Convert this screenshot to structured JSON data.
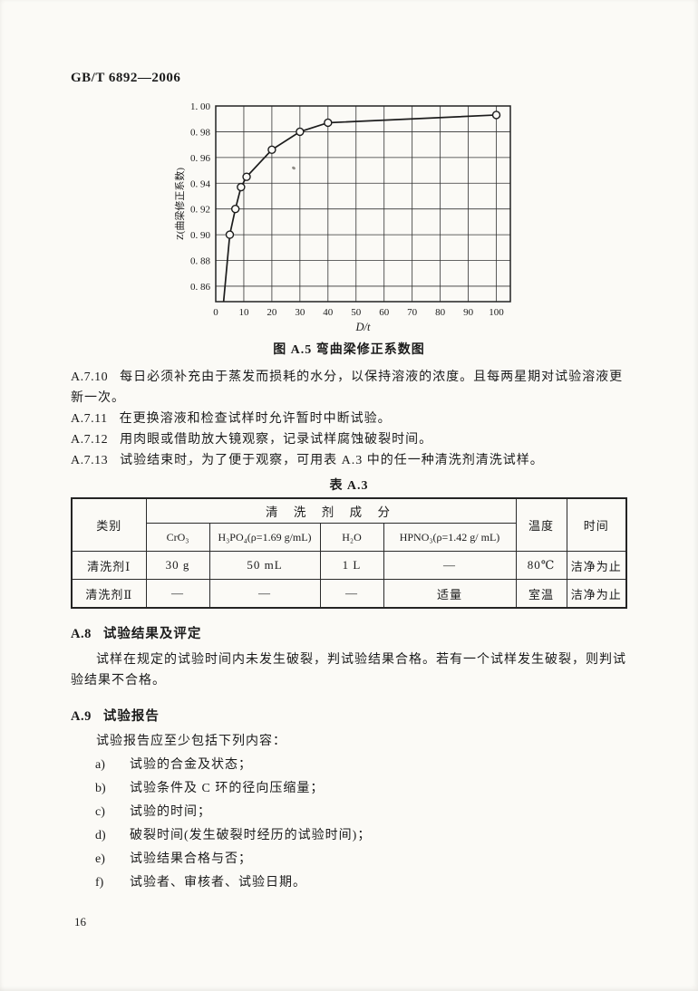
{
  "page": {
    "header": "GB/T 6892—2006",
    "page_number": "16"
  },
  "chart_data": {
    "type": "line",
    "title": "",
    "xlabel": "D/t",
    "ylabel": "Z(曲梁修正系数)",
    "xlim": [
      0,
      105
    ],
    "ylim": [
      0.848,
      1.0
    ],
    "grid": true,
    "legend": "none",
    "marker": "open-circle",
    "x_ticks": [
      {
        "value": 0,
        "label": "0"
      },
      {
        "value": 10,
        "label": "10"
      },
      {
        "value": 20,
        "label": "20"
      },
      {
        "value": 30,
        "label": "30"
      },
      {
        "value": 40,
        "label": "40"
      },
      {
        "value": 50,
        "label": "50"
      },
      {
        "value": 60,
        "label": "60"
      },
      {
        "value": 70,
        "label": "70"
      },
      {
        "value": 80,
        "label": "80"
      },
      {
        "value": 90,
        "label": "90"
      },
      {
        "value": 100,
        "label": "100"
      }
    ],
    "y_ticks": [
      {
        "value": 1.0,
        "label": "1. 00"
      },
      {
        "value": 0.98,
        "label": "0. 98"
      },
      {
        "value": 0.96,
        "label": "0. 96"
      },
      {
        "value": 0.94,
        "label": "0. 94"
      },
      {
        "value": 0.92,
        "label": "0. 92"
      },
      {
        "value": 0.9,
        "label": "0. 90"
      },
      {
        "value": 0.88,
        "label": "0. 88"
      },
      {
        "value": 0.86,
        "label": "0. 86"
      }
    ],
    "line_start": [
      2.8,
      0.848
    ],
    "points": [
      [
        5,
        0.9
      ],
      [
        7,
        0.92
      ],
      [
        9,
        0.937
      ],
      [
        11,
        0.945
      ],
      [
        20,
        0.966
      ],
      [
        30,
        0.98
      ],
      [
        40,
        0.987
      ],
      [
        100,
        0.993
      ]
    ]
  },
  "figure_caption": "图 A.5  弯曲梁修正系数图",
  "clauses": [
    {
      "num": "A.7.10",
      "text": "每日必须补充由于蒸发而损耗的水分，以保持溶液的浓度。且每两星期对试验溶液更新一次。"
    },
    {
      "num": "A.7.11",
      "text": "在更换溶液和检查试样时允许暂时中断试验。"
    },
    {
      "num": "A.7.12",
      "text": "用肉眼或借助放大镜观察，记录试样腐蚀破裂时间。"
    },
    {
      "num": "A.7.13",
      "text": "试验结束时，为了便于观察，可用表 A.3 中的任一种清洗剂清洗试样。"
    }
  ],
  "table": {
    "caption": "表 A.3",
    "col_category": "类别",
    "col_composition": "清 洗 剂 成 分",
    "col_temp": "温度",
    "col_time": "时间",
    "sub_cols": [
      "CrO₃",
      "H₃PO₄(ρ=1.69 g/mL)",
      "H₂O",
      "HPNO₃(ρ=1.42 g/ mL)"
    ],
    "rows": [
      {
        "category": "清洗剂Ⅰ",
        "c1": "30 g",
        "c2": "50 mL",
        "c3": "1 L",
        "c4": "—",
        "temp": "80℃",
        "time": "洁净为止"
      },
      {
        "category": "清洗剂Ⅱ",
        "c1": "—",
        "c2": "—",
        "c3": "—",
        "c4": "适量",
        "temp": "室温",
        "time": "洁净为止"
      }
    ]
  },
  "sections": [
    {
      "num": "A.8",
      "title": "试验结果及评定",
      "body": "试样在规定的试验时间内未发生破裂，判试验结果合格。若有一个试样发生破裂，则判试验结果不合格。"
    },
    {
      "num": "A.9",
      "title": "试验报告",
      "intro": "试验报告应至少包括下列内容：",
      "items": [
        {
          "label": "a)",
          "text": "试验的合金及状态；"
        },
        {
          "label": "b)",
          "text": "试验条件及 C 环的径向压缩量；"
        },
        {
          "label": "c)",
          "text": "试验的时间；"
        },
        {
          "label": "d)",
          "text": "破裂时间(发生破裂时经历的试验时间)；"
        },
        {
          "label": "e)",
          "text": "试验结果合格与否；"
        },
        {
          "label": "f)",
          "text": "试验者、审核者、试验日期。"
        }
      ]
    }
  ]
}
